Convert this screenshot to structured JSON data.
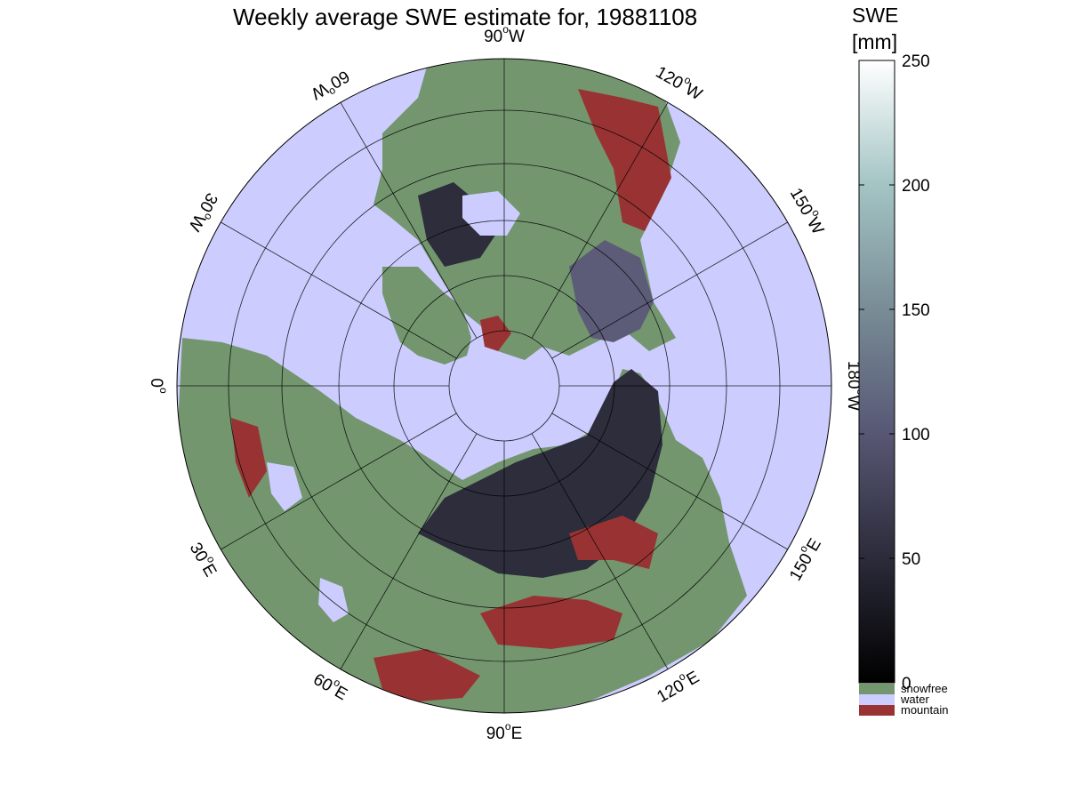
{
  "title": "Weekly average SWE estimate for, 19881108",
  "colorbar": {
    "title_line1": "SWE",
    "title_line2": "[mm]",
    "ticks": [
      0,
      50,
      100,
      150,
      200,
      250
    ],
    "range": [
      0,
      250
    ],
    "categories": [
      {
        "label": "snowfree",
        "color": "#73966e"
      },
      {
        "label": "water",
        "color": "#ccccfe"
      },
      {
        "label": "mountain",
        "color": "#993333"
      }
    ]
  },
  "map": {
    "projection": "north-polar-stereographic",
    "snowfree_color": "#73966e",
    "water_color": "#ccccfe",
    "mountain_color": "#993333",
    "swe_low_color": "#2d2d3c",
    "swe_mid_color": "#5c5c78",
    "longitude_labels": [
      {
        "deg": "90",
        "dir": "W"
      },
      {
        "deg": "120",
        "dir": "W"
      },
      {
        "deg": "150",
        "dir": "W"
      },
      {
        "deg": "180",
        "dir": "W"
      },
      {
        "deg": "150",
        "dir": "E"
      },
      {
        "deg": "120",
        "dir": "E"
      },
      {
        "deg": "90",
        "dir": "E"
      },
      {
        "deg": "60",
        "dir": "E"
      },
      {
        "deg": "30",
        "dir": "E"
      },
      {
        "deg": "0",
        "dir": ""
      },
      {
        "deg": "30",
        "dir": "W"
      },
      {
        "deg": "60",
        "dir": "W"
      }
    ]
  }
}
